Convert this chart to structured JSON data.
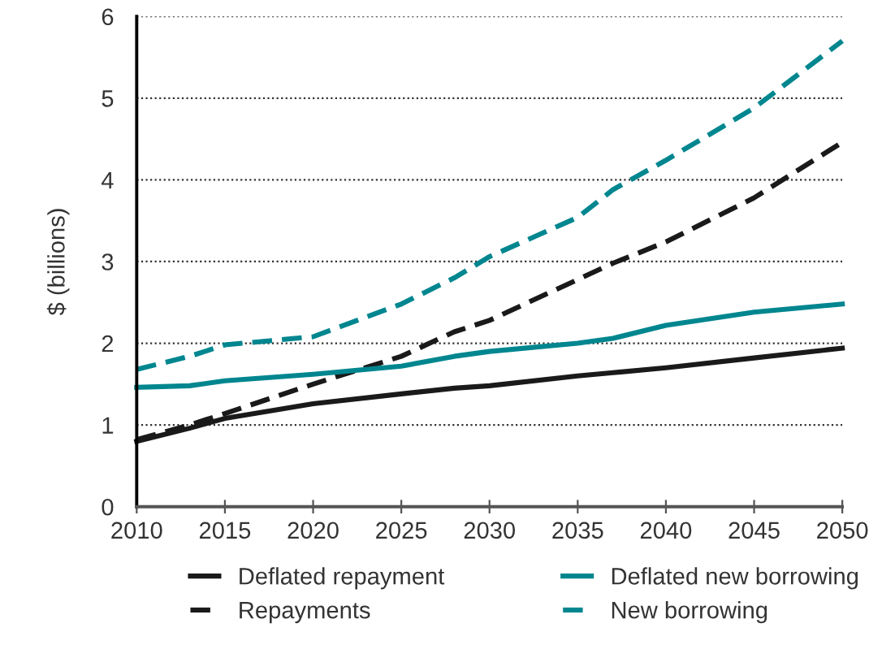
{
  "chart_data": {
    "type": "line",
    "ylabel": "$ (billions)",
    "x": [
      2010,
      2013,
      2015,
      2020,
      2025,
      2028,
      2030,
      2035,
      2037,
      2040,
      2045,
      2050
    ],
    "xlim": [
      2010,
      2050
    ],
    "xticks": [
      2010,
      2015,
      2020,
      2025,
      2030,
      2035,
      2040,
      2045,
      2050
    ],
    "ylim": [
      0,
      6
    ],
    "yticks": [
      0,
      1,
      2,
      3,
      4,
      5,
      6
    ],
    "grid": "y",
    "legend": "bottom",
    "series": [
      {
        "name": "Deflated repayment",
        "color": "#1a1a1a",
        "line_style": "solid",
        "values": [
          0.8,
          0.96,
          1.08,
          1.26,
          1.38,
          1.45,
          1.48,
          1.6,
          1.64,
          1.7,
          1.82,
          1.94
        ]
      },
      {
        "name": "Repayments",
        "color": "#1a1a1a",
        "line_style": "dashed",
        "values": [
          0.82,
          1.0,
          1.14,
          1.5,
          1.84,
          2.14,
          2.28,
          2.78,
          2.98,
          3.24,
          3.78,
          4.46
        ]
      },
      {
        "name": "Deflated new borrowing",
        "color": "#00868f",
        "line_style": "solid",
        "values": [
          1.46,
          1.48,
          1.54,
          1.62,
          1.72,
          1.84,
          1.9,
          2.0,
          2.06,
          2.22,
          2.38,
          2.48
        ]
      },
      {
        "name": "New borrowing",
        "color": "#00868f",
        "line_style": "dashed",
        "values": [
          1.68,
          1.84,
          1.98,
          2.08,
          2.48,
          2.8,
          3.06,
          3.54,
          3.88,
          4.24,
          4.88,
          5.7
        ]
      }
    ]
  }
}
